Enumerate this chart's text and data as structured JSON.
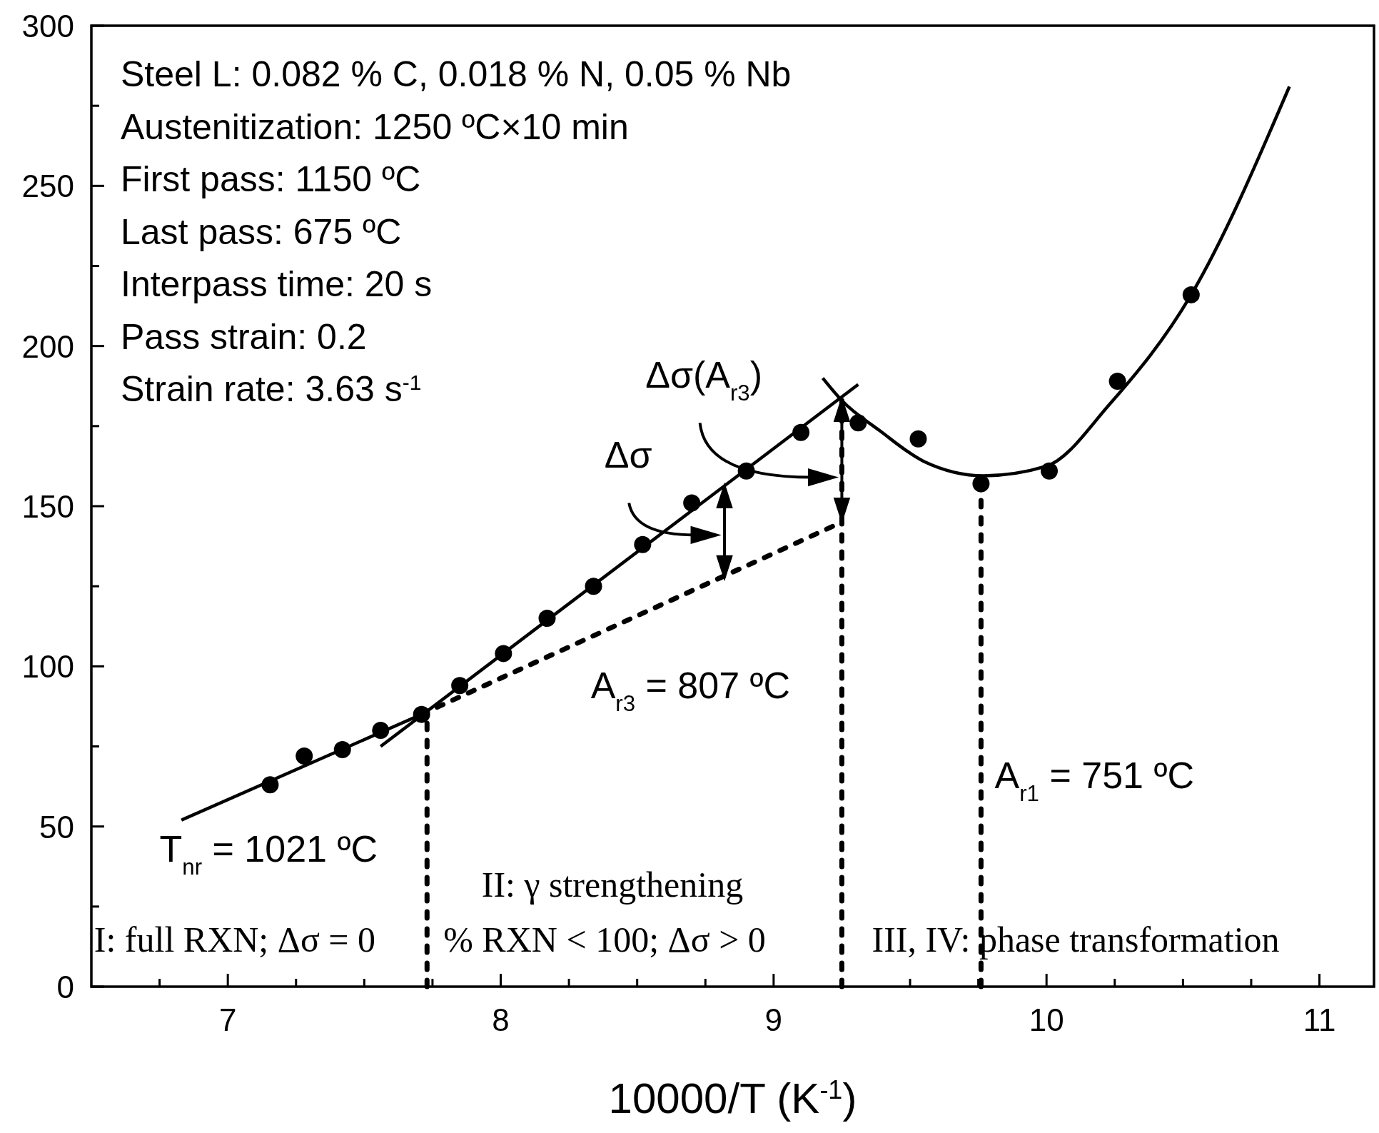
{
  "chart_data": {
    "type": "scatter",
    "xlabel": "10000/T (K$^{-1}$)",
    "xlim": [
      6.5,
      11.2
    ],
    "xticks": [
      {
        "value": 6.75,
        "label": null
      },
      7,
      {
        "value": 7.25,
        "label": null
      },
      {
        "value": 7.5,
        "label": null
      },
      {
        "value": 7.75,
        "label": null
      },
      8,
      {
        "value": 8.25,
        "label": null
      },
      {
        "value": 8.5,
        "label": null
      },
      {
        "value": 8.75,
        "label": null
      },
      9,
      {
        "value": 9.25,
        "label": null
      },
      {
        "value": 9.5,
        "label": null
      },
      {
        "value": 9.75,
        "label": null
      },
      10,
      {
        "value": 10.25,
        "label": null
      },
      {
        "value": 10.5,
        "label": null
      },
      {
        "value": 10.75,
        "label": null
      },
      11
    ],
    "ylim": [
      0,
      300
    ],
    "yticks": [
      0,
      {
        "value": 25,
        "label": null
      },
      50,
      {
        "value": 75,
        "label": null
      },
      100,
      {
        "value": 125,
        "label": null
      },
      150,
      {
        "value": 175,
        "label": null
      },
      200,
      {
        "value": 225,
        "label": null
      },
      250,
      {
        "value": 275,
        "label": null
      },
      300
    ],
    "grid": false,
    "series": [
      {
        "marker": "circle",
        "color": "#000000",
        "x": [
          7.155,
          7.28,
          7.42,
          7.56,
          7.71,
          7.85,
          8.01,
          8.17,
          8.34,
          8.52,
          8.7,
          8.9,
          9.1,
          9.31,
          9.53,
          9.76,
          10.01,
          10.26,
          10.53
        ],
        "values": [
          63,
          72,
          74,
          80,
          85,
          94,
          104,
          115,
          125,
          138,
          151,
          161,
          173,
          176,
          171,
          157,
          161,
          189,
          216
        ]
      },
      {
        "type": "line",
        "line_style": "solid",
        "color": "#000000",
        "x": [
          6.83,
          7.71
        ],
        "values": [
          52,
          85
        ]
      },
      {
        "type": "line",
        "line_style": "solid",
        "color": "#000000",
        "x": [
          7.56,
          9.31
        ],
        "values": [
          75,
          188
        ]
      },
      {
        "type": "line",
        "line_style": "dotted",
        "color": "#000000",
        "x": [
          7.71,
          9.25
        ],
        "values": [
          85,
          145
        ]
      },
      {
        "type": "line",
        "line_style": "solid",
        "color": "#000000",
        "x": [
          9.18,
          9.25,
          9.39,
          9.55,
          9.77,
          10.0,
          10.23,
          10.53,
          10.89
        ],
        "values": [
          190,
          183,
          173.5,
          164,
          159.5,
          162.5,
          181.7,
          216,
          281
        ]
      },
      {
        "type": "line",
        "line_style": "dotted",
        "color": "#000000",
        "x": [
          7.73,
          7.73
        ],
        "values": [
          0,
          85
        ]
      },
      {
        "type": "line",
        "line_style": "dotted",
        "color": "#000000",
        "x": [
          9.25,
          9.25
        ],
        "values": [
          0,
          183
        ]
      },
      {
        "type": "line",
        "line_style": "dotted",
        "color": "#000000",
        "x": [
          9.76,
          9.76
        ],
        "values": [
          0,
          157
        ]
      }
    ],
    "annotations": [
      "Steel L: 0.082 % C, 0.018 % N, 0.05 % Nb",
      "Austenitization: 1250 ºC×10 min",
      "First pass: 1150 ºC",
      "Last pass: 675 ºC",
      "Interpass time: 20 s",
      "Pass strain: 0.2",
      "Strain rate: 3.63 s$^{-1}$",
      "T$_{nr}$ = 1021 ºC",
      "A$_{r3}$ = 807 ºC",
      "A$_{r1}$ = 751 ºC",
      "Δσ(A$_{r3}$)",
      "Δσ",
      "II: γ strengthening",
      "I: full RXN; Δσ = 0",
      "% RXN < 100; Δσ > 0",
      "III, IV: phase transformation"
    ]
  }
}
